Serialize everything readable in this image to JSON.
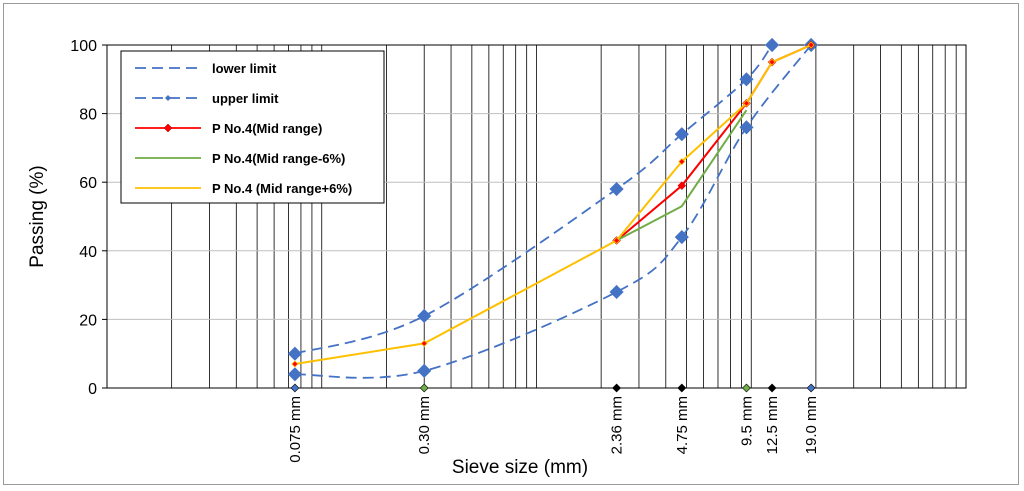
{
  "chart_data": {
    "type": "line",
    "xscale": "log",
    "xlabel": "Sieve size (mm)",
    "ylabel": "Passing (%)",
    "ylim": [
      0,
      100
    ],
    "yticks": [
      0,
      20,
      40,
      60,
      80,
      100
    ],
    "xlim": [
      0.01,
      100
    ],
    "sieve_labels": [
      {
        "x": 0.075,
        "label": "0.075 mm"
      },
      {
        "x": 0.3,
        "label": "0.30 mm"
      },
      {
        "x": 2.36,
        "label": "2.36 mm"
      },
      {
        "x": 4.75,
        "label": "4.75 mm"
      },
      {
        "x": 9.5,
        "label": "9.5 mm"
      },
      {
        "x": 12.5,
        "label": "12.5 mm"
      },
      {
        "x": 19.0,
        "label": "19.0 mm"
      }
    ],
    "legend_position": "top-left",
    "grid": "vertical log gridlines",
    "series": [
      {
        "name": "lower limit",
        "color": "#4472c4",
        "style": "dash",
        "marker": "square",
        "points": [
          [
            0.075,
            4
          ],
          [
            0.3,
            5
          ],
          [
            2.36,
            28
          ],
          [
            4.75,
            44
          ],
          [
            9.5,
            76
          ],
          [
            19.0,
            100
          ]
        ]
      },
      {
        "name": "upper limit",
        "color": "#4472c4",
        "style": "dash",
        "marker": "square",
        "points": [
          [
            0.075,
            10
          ],
          [
            0.3,
            21
          ],
          [
            2.36,
            58
          ],
          [
            4.75,
            74
          ],
          [
            9.5,
            90
          ],
          [
            12.5,
            100
          ]
        ]
      },
      {
        "name": "P No.4(Mid range)",
        "color": "#ff0000",
        "style": "solid",
        "marker": "diamond",
        "points": [
          [
            2.36,
            43
          ],
          [
            4.75,
            59
          ],
          [
            9.5,
            83
          ],
          [
            12.5,
            95
          ],
          [
            19.0,
            100
          ]
        ]
      },
      {
        "name": "P No.4(Mid range-6%)",
        "color": "#70ad47",
        "style": "solid",
        "marker": "none",
        "points": [
          [
            2.36,
            43
          ],
          [
            4.75,
            53
          ],
          [
            9.5,
            81
          ]
        ]
      },
      {
        "name": "P No.4 (Mid range+6%)",
        "color": "#ffc000",
        "style": "solid",
        "marker": "diamond-small",
        "points": [
          [
            0.075,
            7
          ],
          [
            0.3,
            13
          ],
          [
            2.36,
            43
          ],
          [
            4.75,
            66
          ],
          [
            9.5,
            83
          ],
          [
            12.5,
            95
          ],
          [
            19.0,
            100
          ]
        ]
      }
    ]
  }
}
